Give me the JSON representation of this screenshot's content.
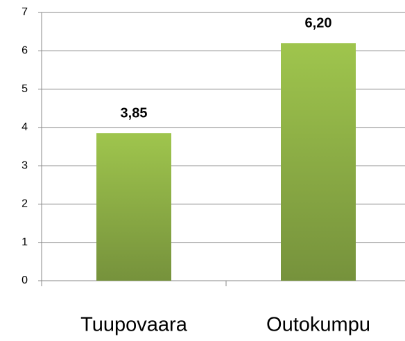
{
  "chart_data": {
    "type": "bar",
    "categories": [
      "Tuupovaara",
      "Outokumpu"
    ],
    "values": [
      3.85,
      6.2
    ],
    "value_labels": [
      "3,85",
      "6,20"
    ],
    "color": "#8db446",
    "ylim": [
      0,
      7
    ],
    "yticks": [
      0,
      1,
      2,
      3,
      4,
      5,
      6,
      7
    ],
    "grid": true
  }
}
